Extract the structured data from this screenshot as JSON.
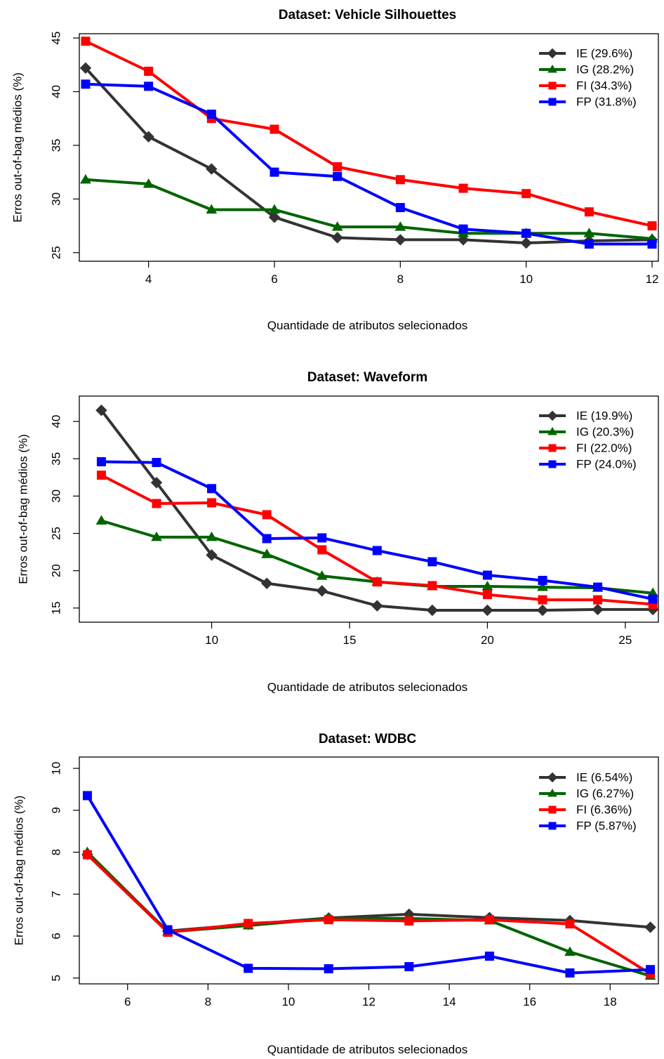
{
  "chart_data": [
    {
      "type": "line",
      "title": "Dataset: Vehicle Silhouettes",
      "xlabel": "Quantidade de atributos selecionados",
      "ylabel": "Erros out-of-bag médios (%)",
      "x": [
        3,
        4,
        5,
        6,
        7,
        8,
        9,
        10,
        11,
        12
      ],
      "xlim": [
        2.9,
        12.1
      ],
      "ylim": [
        24.2,
        45.4
      ],
      "xticks": [
        4,
        6,
        8,
        10,
        12
      ],
      "yticks": [
        25,
        30,
        35,
        40,
        45
      ],
      "grid": false,
      "legend_position": "top-right",
      "series": [
        {
          "name": "IE",
          "legend_label": "IE  (29.6%)",
          "color": "#333333",
          "marker": "diamond",
          "values": [
            42.2,
            35.8,
            32.8,
            28.3,
            26.4,
            26.2,
            26.2,
            25.9,
            26.1,
            26.2
          ]
        },
        {
          "name": "IG",
          "legend_label": "IG  (28.2%)",
          "color": "#006400",
          "marker": "triangle",
          "values": [
            31.8,
            31.4,
            29.0,
            29.0,
            27.4,
            27.4,
            26.8,
            26.8,
            26.8,
            26.3
          ]
        },
        {
          "name": "FI",
          "legend_label": "FI  (34.3%)",
          "color": "#ff0000",
          "marker": "square",
          "values": [
            44.7,
            41.9,
            37.5,
            36.5,
            33.0,
            31.8,
            31.0,
            30.5,
            28.8,
            27.5
          ]
        },
        {
          "name": "FP",
          "legend_label": "FP  (31.8%)",
          "color": "#0000ff",
          "marker": "square",
          "values": [
            40.7,
            40.5,
            37.9,
            32.5,
            32.1,
            29.2,
            27.2,
            26.8,
            25.8,
            25.8
          ]
        }
      ]
    },
    {
      "type": "line",
      "title": "Dataset: Waveform",
      "xlabel": "Quantidade de atributos selecionados",
      "ylabel": "Erros out-of-bag médios (%)",
      "x": [
        6,
        8,
        10,
        12,
        14,
        16,
        18,
        20,
        22,
        24,
        26
      ],
      "xlim": [
        5.2,
        26.2
      ],
      "ylim": [
        13.1,
        43.4
      ],
      "xticks": [
        10,
        15,
        20,
        25
      ],
      "yticks": [
        15,
        20,
        25,
        30,
        35,
        40
      ],
      "grid": false,
      "legend_position": "top-right",
      "series": [
        {
          "name": "IE",
          "legend_label": "IE  (19.9%)",
          "color": "#333333",
          "marker": "diamond",
          "values": [
            41.5,
            31.8,
            22.1,
            18.3,
            17.3,
            15.3,
            14.7,
            14.7,
            14.7,
            14.8,
            14.8
          ]
        },
        {
          "name": "IG",
          "legend_label": "IG  (20.3%)",
          "color": "#006400",
          "marker": "triangle",
          "values": [
            26.7,
            24.5,
            24.5,
            22.2,
            19.3,
            18.5,
            17.9,
            17.9,
            17.8,
            17.7,
            17.0
          ]
        },
        {
          "name": "FI",
          "legend_label": "FI  (22.0%)",
          "color": "#ff0000",
          "marker": "square",
          "values": [
            32.8,
            29.0,
            29.1,
            27.5,
            22.8,
            18.5,
            18.0,
            16.8,
            16.1,
            16.1,
            15.5
          ]
        },
        {
          "name": "FP",
          "legend_label": "FP  (24.0%)",
          "color": "#0000ff",
          "marker": "square",
          "values": [
            34.6,
            34.5,
            31.0,
            24.3,
            24.4,
            22.7,
            21.2,
            19.4,
            18.7,
            17.8,
            16.2
          ]
        }
      ]
    },
    {
      "type": "line",
      "title": "Dataset: WDBC",
      "xlabel": "Quantidade de atributos selecionados",
      "ylabel": "Erros out-of-bag médios (%)",
      "x": [
        5,
        7,
        9,
        11,
        13,
        15,
        17,
        19
      ],
      "xlim": [
        4.8,
        19.2
      ],
      "ylim": [
        4.86,
        10.27
      ],
      "xticks": [
        6,
        8,
        10,
        12,
        14,
        16,
        18
      ],
      "yticks": [
        5,
        6,
        7,
        8,
        9,
        10
      ],
      "grid": false,
      "legend_position": "top-right",
      "series": [
        {
          "name": "IE",
          "legend_label": "IE  (6.54%)",
          "color": "#333333",
          "marker": "diamond",
          "values": [
            7.95,
            6.12,
            6.28,
            6.43,
            6.52,
            6.44,
            6.37,
            6.21
          ]
        },
        {
          "name": "IG",
          "legend_label": "IG  (6.27%)",
          "color": "#006400",
          "marker": "triangle",
          "values": [
            8.0,
            6.1,
            6.25,
            6.42,
            6.42,
            6.37,
            5.62,
            5.05
          ]
        },
        {
          "name": "FI",
          "legend_label": "FI  (6.36%)",
          "color": "#ff0000",
          "marker": "square",
          "values": [
            7.94,
            6.09,
            6.3,
            6.39,
            6.36,
            6.39,
            6.29,
            5.1
          ]
        },
        {
          "name": "FP",
          "legend_label": "FP  (5.87%)",
          "color": "#0000ff",
          "marker": "square",
          "values": [
            9.35,
            6.15,
            5.23,
            5.22,
            5.27,
            5.52,
            5.12,
            5.2
          ]
        }
      ]
    }
  ]
}
